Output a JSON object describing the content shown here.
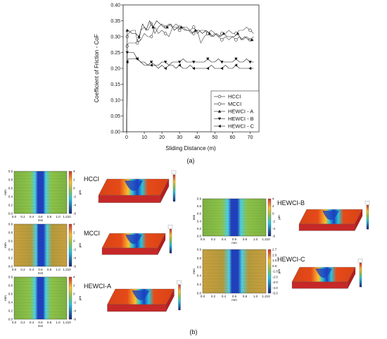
{
  "chart_data": {
    "type": "line",
    "xlabel": "Sliding Distance (m)",
    "ylabel": "Coefficient of Friction - CoF",
    "xlim": [
      -2,
      75
    ],
    "ylim": [
      0,
      0.4
    ],
    "xticks": [
      "0",
      "10",
      "20",
      "30",
      "40",
      "50",
      "60",
      "70"
    ],
    "yticks": [
      "0.00",
      "0.05",
      "0.10",
      "0.15",
      "0.20",
      "0.25",
      "0.30",
      "0.35",
      "0.40"
    ],
    "legend_position": "bottom-right",
    "grid": false,
    "series": [
      {
        "name": "HCCI",
        "marker": "circle-open",
        "x": [
          0,
          0.3,
          1,
          3,
          5,
          7,
          8,
          10,
          12,
          14,
          16,
          18,
          20,
          22,
          24,
          26,
          28,
          30,
          32,
          34,
          36,
          38,
          40,
          42,
          44,
          46,
          48,
          50,
          52,
          54,
          56,
          58,
          60,
          62,
          64,
          66,
          68,
          70,
          72
        ],
        "y": [
          0,
          0.27,
          0.28,
          0.28,
          0.28,
          0.29,
          0.32,
          0.33,
          0.32,
          0.34,
          0.31,
          0.33,
          0.34,
          0.33,
          0.34,
          0.33,
          0.34,
          0.33,
          0.33,
          0.32,
          0.32,
          0.33,
          0.31,
          0.32,
          0.32,
          0.31,
          0.32,
          0.31,
          0.3,
          0.31,
          0.31,
          0.32,
          0.31,
          0.31,
          0.32,
          0.32,
          0.33,
          0.32,
          0.31
        ]
      },
      {
        "name": "MCCI",
        "marker": "circle-open",
        "x": [
          0,
          0.3,
          1,
          3,
          5,
          6,
          8,
          10,
          12,
          14,
          16,
          18,
          20,
          22,
          24,
          26,
          28,
          30,
          32,
          34,
          36,
          38,
          40,
          42,
          44,
          46,
          48,
          50,
          52,
          54,
          56,
          58,
          60,
          62,
          64,
          66,
          68,
          70,
          72
        ],
        "y": [
          0,
          0.3,
          0.31,
          0.32,
          0.32,
          0.28,
          0.29,
          0.31,
          0.3,
          0.3,
          0.33,
          0.31,
          0.32,
          0.31,
          0.3,
          0.33,
          0.33,
          0.32,
          0.33,
          0.33,
          0.32,
          0.31,
          0.32,
          0.28,
          0.3,
          0.31,
          0.3,
          0.31,
          0.3,
          0.29,
          0.3,
          0.29,
          0.3,
          0.29,
          0.3,
          0.29,
          0.3,
          0.29,
          0.3
        ]
      },
      {
        "name": "HEWCI - A",
        "marker": "triangle-up",
        "x": [
          0,
          0.3,
          1,
          3,
          5,
          7,
          9,
          11,
          13,
          15,
          17,
          19,
          21,
          23,
          25,
          27,
          29,
          31,
          33,
          35,
          37,
          39,
          41,
          43,
          45,
          47,
          49,
          51,
          53,
          55,
          57,
          59,
          61,
          63,
          65,
          67,
          69,
          71,
          72
        ],
        "y": [
          0,
          0.32,
          0.32,
          0.31,
          0.31,
          0.3,
          0.34,
          0.32,
          0.35,
          0.33,
          0.35,
          0.34,
          0.33,
          0.33,
          0.34,
          0.32,
          0.33,
          0.33,
          0.32,
          0.32,
          0.31,
          0.32,
          0.32,
          0.31,
          0.32,
          0.31,
          0.3,
          0.31,
          0.3,
          0.31,
          0.3,
          0.3,
          0.3,
          0.31,
          0.29,
          0.3,
          0.29,
          0.29,
          0.29
        ]
      },
      {
        "name": "HEWCI - B",
        "marker": "triangle-down",
        "x": [
          0,
          0.3,
          1,
          2,
          4,
          6,
          8,
          10,
          12,
          14,
          16,
          18,
          20,
          22,
          24,
          26,
          28,
          30,
          32,
          34,
          36,
          38,
          40,
          42,
          44,
          46,
          48,
          50,
          52,
          54,
          56,
          58,
          60,
          62,
          64,
          66,
          68,
          70,
          72
        ],
        "y": [
          0,
          0.25,
          0.25,
          0.25,
          0.25,
          0.23,
          0.22,
          0.22,
          0.21,
          0.22,
          0.21,
          0.21,
          0.22,
          0.22,
          0.21,
          0.22,
          0.22,
          0.22,
          0.23,
          0.22,
          0.22,
          0.22,
          0.22,
          0.22,
          0.22,
          0.23,
          0.22,
          0.22,
          0.23,
          0.22,
          0.22,
          0.22,
          0.22,
          0.23,
          0.22,
          0.22,
          0.23,
          0.22,
          0.22
        ]
      },
      {
        "name": "HEWCI - C",
        "marker": "triangle-left",
        "x": [
          0,
          0.3,
          1,
          2,
          4,
          6,
          8,
          10,
          12,
          14,
          16,
          18,
          20,
          22,
          24,
          26,
          28,
          30,
          32,
          34,
          36,
          38,
          40,
          42,
          44,
          46,
          48,
          50,
          52,
          54,
          56,
          58,
          60,
          62,
          64,
          66,
          68,
          70,
          72
        ],
        "y": [
          0,
          0.22,
          0.23,
          0.23,
          0.23,
          0.23,
          0.22,
          0.21,
          0.21,
          0.21,
          0.21,
          0.2,
          0.21,
          0.2,
          0.21,
          0.21,
          0.2,
          0.21,
          0.2,
          0.2,
          0.21,
          0.2,
          0.2,
          0.2,
          0.2,
          0.2,
          0.21,
          0.2,
          0.2,
          0.2,
          0.21,
          0.2,
          0.2,
          0.21,
          0.2,
          0.2,
          0.2,
          0.2,
          0.2
        ]
      }
    ]
  },
  "caption_a": "(a)",
  "caption_b": "(b)",
  "panel_b": {
    "samples": [
      {
        "label": "HCCI"
      },
      {
        "label": "MCCI"
      },
      {
        "label": "HEWCI-A"
      },
      {
        "label": "HEWCI-B"
      },
      {
        "label": "HEWCI-C"
      }
    ],
    "axis_unit": "mm",
    "scale_unit": "µm",
    "profile_ticks": [
      "0.0",
      "0.2",
      "0.4",
      "0.6",
      "0.8",
      "1.0",
      "1.210"
    ],
    "left_scale_ticks": [
      "0.9",
      "0.8",
      "0.6",
      "0.4",
      "0.2",
      "0.0"
    ],
    "colorbar_ticks_a": [
      "4",
      "2",
      "0",
      "-2",
      "-4",
      "-6"
    ],
    "colorbar_ticks_c": [
      "2.7",
      "2.0",
      "1.0",
      "0.0",
      "-1.0",
      "-2.0",
      "-3.0",
      "-4.0",
      "-5.0"
    ]
  }
}
